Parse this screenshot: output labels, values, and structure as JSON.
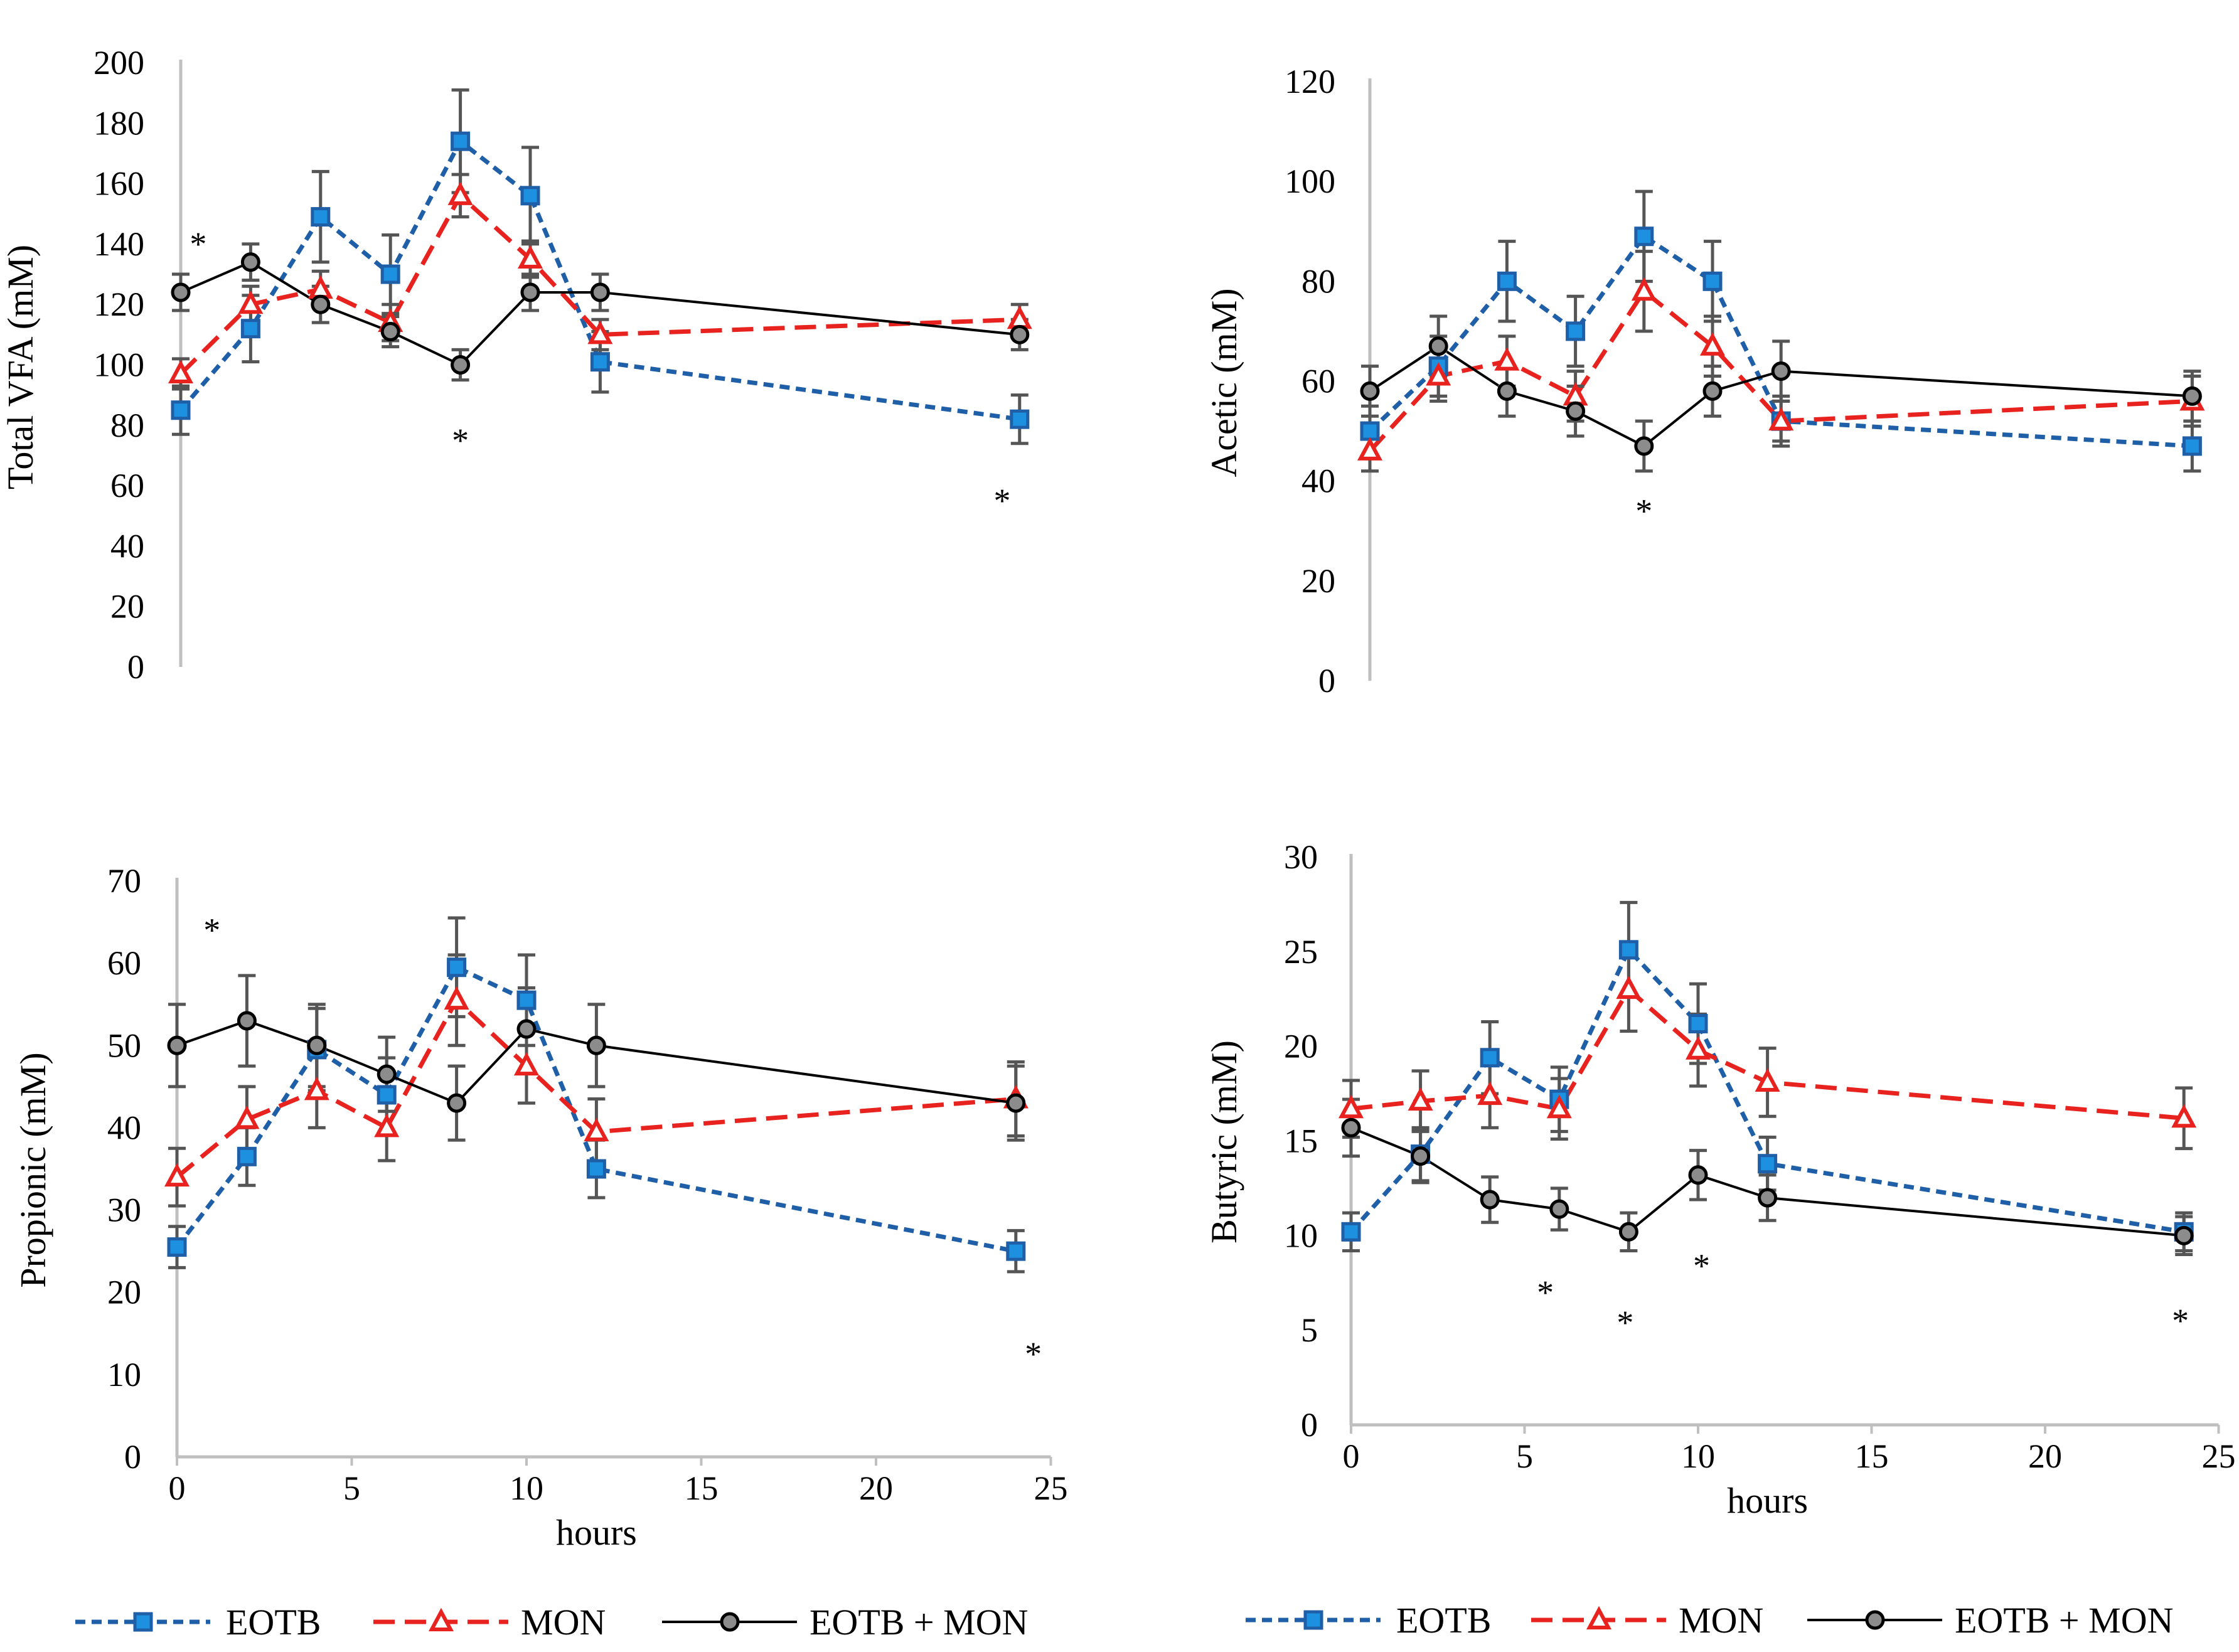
{
  "colors": {
    "eotb": "#1F5FA8",
    "eotb_fill": "#1E90E0",
    "mon": "#E8231F",
    "mon_fill": "#FFFFFF",
    "combo": "#000000",
    "combo_fill": "#8C8C8C",
    "error_bar": "#555555",
    "axis": "#BFBFBF"
  },
  "chart_data": [
    {
      "id": "total-vfa",
      "type": "line",
      "ylabel": "Total VFA (mM)",
      "xlabel": "",
      "ylim": [
        0,
        200
      ],
      "yticks": [
        0,
        20,
        40,
        60,
        80,
        100,
        120,
        140,
        160,
        180,
        200
      ],
      "xlim": [
        0,
        25
      ],
      "xticks": [],
      "series": [
        {
          "name": "EOTB",
          "x": [
            0,
            2,
            4,
            6,
            8,
            10,
            12,
            24
          ],
          "values": [
            85,
            112,
            149,
            130,
            174,
            156,
            101,
            82
          ],
          "err": [
            8,
            11,
            15,
            13,
            17,
            16,
            10,
            8
          ]
        },
        {
          "name": "MON",
          "x": [
            0,
            2,
            4,
            6,
            8,
            10,
            12,
            24
          ],
          "values": [
            97,
            120,
            125,
            114,
            156,
            135,
            110,
            115
          ],
          "err": [
            5,
            6,
            6,
            6,
            7,
            6,
            5,
            5
          ]
        },
        {
          "name": "EOTB + MON",
          "x": [
            0,
            2,
            4,
            6,
            8,
            10,
            12,
            24
          ],
          "values": [
            124,
            134,
            120,
            111,
            100,
            124,
            124,
            110
          ],
          "err": [
            6,
            6,
            6,
            5,
            5,
            6,
            6,
            5
          ]
        }
      ],
      "stars": [
        {
          "x": 0.5,
          "y": 140,
          "label": "*"
        },
        {
          "x": 8,
          "y": 75,
          "label": "*"
        },
        {
          "x": 23.5,
          "y": 55,
          "label": "*"
        }
      ]
    },
    {
      "id": "acetic",
      "type": "line",
      "ylabel": "Acetic (mM)",
      "xlabel": "",
      "ylim": [
        0,
        120
      ],
      "yticks": [
        0,
        20,
        40,
        60,
        80,
        100,
        120
      ],
      "xlim": [
        0,
        25
      ],
      "xticks": [],
      "series": [
        {
          "name": "EOTB",
          "x": [
            0,
            2,
            4,
            6,
            8,
            10,
            12,
            24
          ],
          "values": [
            50,
            63,
            80,
            70,
            89,
            80,
            52,
            47
          ],
          "err": [
            5,
            6,
            8,
            7,
            9,
            8,
            5,
            5
          ]
        },
        {
          "name": "MON",
          "x": [
            0,
            2,
            4,
            6,
            8,
            10,
            12,
            24
          ],
          "values": [
            46,
            61,
            64,
            57,
            78,
            67,
            52,
            56
          ],
          "err": [
            4,
            5,
            5,
            5,
            8,
            6,
            4,
            5
          ]
        },
        {
          "name": "EOTB + MON",
          "x": [
            0,
            2,
            4,
            6,
            8,
            10,
            12,
            24
          ],
          "values": [
            58,
            67,
            58,
            54,
            47,
            58,
            62,
            57
          ],
          "err": [
            5,
            6,
            5,
            5,
            5,
            5,
            6,
            5
          ]
        }
      ],
      "stars": [
        {
          "x": 8,
          "y": 34,
          "label": "*"
        }
      ]
    },
    {
      "id": "propionic",
      "type": "line",
      "ylabel": "Propionic (mM)",
      "xlabel": "hours",
      "ylim": [
        0,
        70
      ],
      "yticks": [
        0,
        10,
        20,
        30,
        40,
        50,
        60,
        70
      ],
      "xlim": [
        0,
        25
      ],
      "xticks": [
        0,
        5,
        10,
        15,
        20,
        25
      ],
      "series": [
        {
          "name": "EOTB",
          "x": [
            0,
            2,
            4,
            6,
            8,
            10,
            12,
            24
          ],
          "values": [
            25.5,
            36.5,
            49.5,
            44,
            59.5,
            55.5,
            35,
            25
          ],
          "err": [
            2.5,
            3.5,
            5,
            4.5,
            6,
            5.5,
            3.5,
            2.5
          ]
        },
        {
          "name": "MON",
          "x": [
            0,
            2,
            4,
            6,
            8,
            10,
            12,
            24
          ],
          "values": [
            34,
            41,
            44.5,
            40,
            55.5,
            47.5,
            39.5,
            43.5
          ],
          "err": [
            3.5,
            4,
            4.5,
            4,
            5.5,
            4.5,
            4,
            4.5
          ]
        },
        {
          "name": "EOTB + MON",
          "x": [
            0,
            2,
            4,
            6,
            8,
            10,
            12,
            24
          ],
          "values": [
            50,
            53,
            50,
            46.5,
            43,
            52,
            50,
            43
          ],
          "err": [
            5,
            5.5,
            5,
            4.5,
            4.5,
            5,
            5,
            4.5
          ]
        }
      ],
      "stars": [
        {
          "x": 1,
          "y": 64,
          "label": "*"
        },
        {
          "x": 24.5,
          "y": 12.5,
          "label": "*"
        }
      ]
    },
    {
      "id": "butyric",
      "type": "line",
      "ylabel": "Butyric (mM)",
      "xlabel": "hours",
      "ylim": [
        0,
        30
      ],
      "yticks": [
        0,
        5,
        10,
        15,
        20,
        25,
        30
      ],
      "xlim": [
        0,
        25
      ],
      "xticks": [
        0,
        5,
        10,
        15,
        20,
        25
      ],
      "series": [
        {
          "name": "EOTB",
          "x": [
            0,
            2,
            4,
            6,
            8,
            10,
            12,
            24
          ],
          "values": [
            10.2,
            14.3,
            19.4,
            17.2,
            25.1,
            21.2,
            13.8,
            10.2
          ],
          "err": [
            1,
            1.4,
            1.9,
            1.7,
            2.5,
            2.1,
            1.4,
            1
          ]
        },
        {
          "name": "MON",
          "x": [
            0,
            2,
            4,
            6,
            8,
            10,
            12,
            24
          ],
          "values": [
            16.7,
            17.1,
            17.4,
            16.7,
            23,
            19.8,
            18.1,
            16.2
          ],
          "err": [
            1.5,
            1.6,
            1.7,
            1.6,
            2.2,
            1.9,
            1.8,
            1.6
          ]
        },
        {
          "name": "EOTB + MON",
          "x": [
            0,
            2,
            4,
            6,
            8,
            10,
            12,
            24
          ],
          "values": [
            15.7,
            14.2,
            11.9,
            11.4,
            10.2,
            13.2,
            12,
            10
          ],
          "err": [
            1.5,
            1.4,
            1.2,
            1.1,
            1,
            1.3,
            1.2,
            1
          ]
        }
      ],
      "stars": [
        {
          "x": 5.6,
          "y": 7,
          "label": "*"
        },
        {
          "x": 7.9,
          "y": 5.4,
          "label": "*"
        },
        {
          "x": 10.1,
          "y": 8.4,
          "label": "*"
        },
        {
          "x": 23.9,
          "y": 5.5,
          "label": "*"
        }
      ]
    }
  ],
  "legends": [
    {
      "items": [
        "EOTB",
        "MON",
        "EOTB + MON"
      ]
    },
    {
      "items": [
        "EOTB",
        "MON",
        "EOTB + MON"
      ]
    }
  ]
}
